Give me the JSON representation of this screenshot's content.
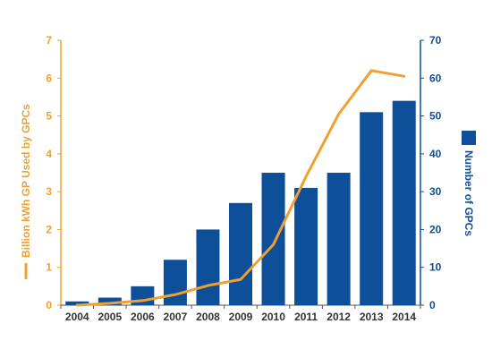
{
  "chart_data": {
    "type": "bar",
    "categories": [
      "2004",
      "2005",
      "2006",
      "2007",
      "2008",
      "2009",
      "2010",
      "2011",
      "2012",
      "2013",
      "2014"
    ],
    "series": [
      {
        "name": "Number of GPCs",
        "type": "bar",
        "axis": "right",
        "color": "#0d4f99",
        "values": [
          1,
          2,
          5,
          12,
          20,
          27,
          35,
          31,
          35,
          51,
          54
        ]
      },
      {
        "name": "Billion kWh GP Used by GPCs",
        "type": "line",
        "axis": "left",
        "color": "#f0a030",
        "values": [
          0.0,
          0.05,
          0.12,
          0.28,
          0.52,
          0.68,
          1.6,
          3.4,
          5.05,
          6.2,
          6.05
        ]
      }
    ],
    "ylabel_left": "Billion kWh GP Used by GPCs",
    "ylabel_right": "Number of GPCs",
    "ylim_left": [
      0,
      7
    ],
    "ylim_right": [
      0,
      70
    ],
    "yticks_left": [
      "0",
      "1",
      "2",
      "3",
      "4",
      "5",
      "6",
      "7"
    ],
    "yticks_right": [
      "0",
      "10",
      "20",
      "30",
      "40",
      "50",
      "60",
      "70"
    ],
    "grid": false,
    "legend": "axis labels with markers"
  }
}
